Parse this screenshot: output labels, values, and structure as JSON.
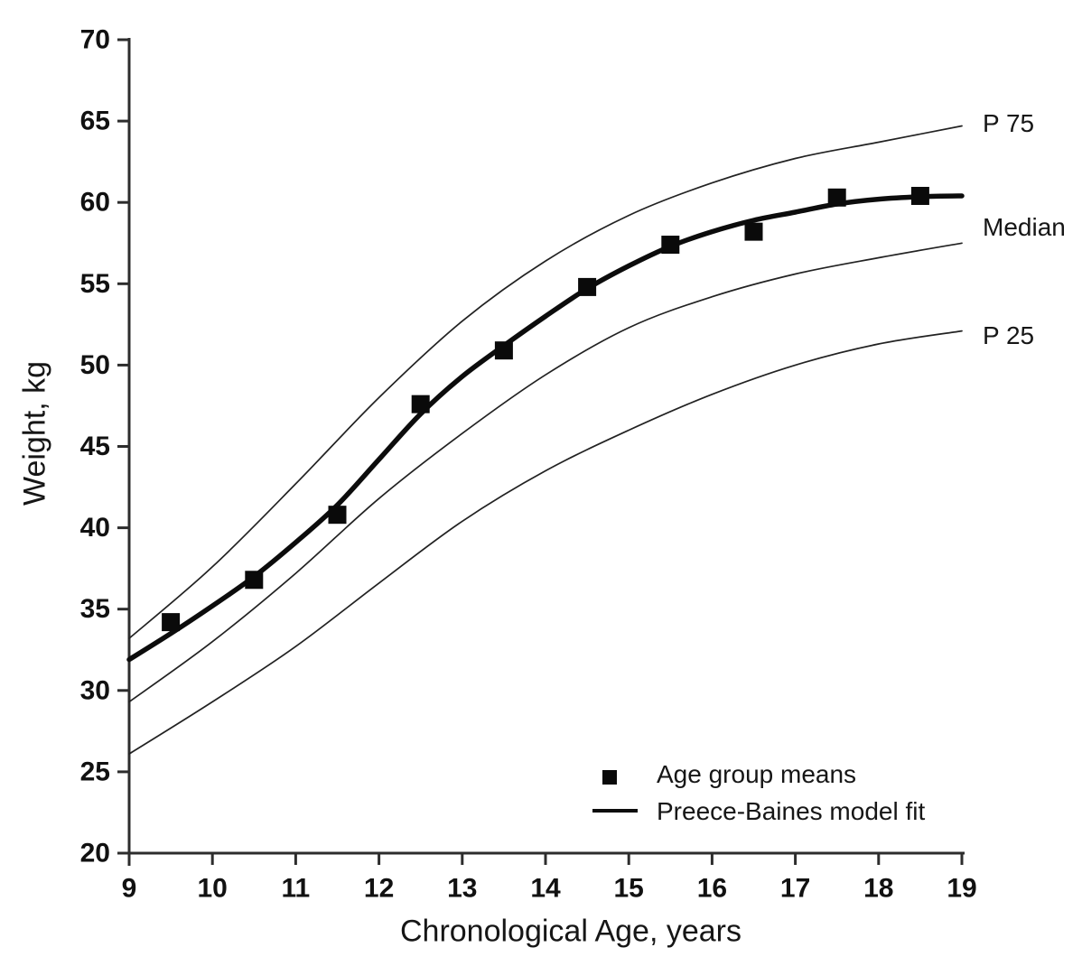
{
  "chart_data": {
    "type": "line",
    "title": "",
    "xlabel": "Chronological Age, years",
    "ylabel": "Weight, kg",
    "xlim": [
      9,
      19
    ],
    "ylim": [
      20,
      70
    ],
    "x_ticks": [
      9,
      10,
      11,
      12,
      13,
      14,
      15,
      16,
      17,
      18,
      19
    ],
    "y_ticks": [
      20,
      25,
      30,
      35,
      40,
      45,
      50,
      55,
      60,
      65,
      70
    ],
    "grid": false,
    "legend_position": "lower right",
    "series": [
      {
        "name": "P 75",
        "kind": "line",
        "style": "thin",
        "x": [
          9,
          10,
          11,
          12,
          13,
          14,
          15,
          16,
          17,
          18,
          19
        ],
        "y": [
          33.2,
          37.6,
          42.7,
          48.0,
          52.7,
          56.4,
          59.2,
          61.2,
          62.7,
          63.7,
          64.7
        ]
      },
      {
        "name": "Median",
        "kind": "line",
        "style": "thin",
        "x": [
          9,
          10,
          11,
          12,
          13,
          14,
          15,
          16,
          17,
          18,
          19
        ],
        "y": [
          29.3,
          33.0,
          37.2,
          41.8,
          45.8,
          49.4,
          52.3,
          54.2,
          55.6,
          56.6,
          57.5
        ]
      },
      {
        "name": "P 25",
        "kind": "line",
        "style": "thin",
        "x": [
          9,
          10,
          11,
          12,
          13,
          14,
          15,
          16,
          17,
          18,
          19
        ],
        "y": [
          26.1,
          29.3,
          32.7,
          36.6,
          40.4,
          43.5,
          46.0,
          48.2,
          50.0,
          51.3,
          52.1
        ]
      },
      {
        "name": "Preece-Baines model fit",
        "kind": "line",
        "style": "thick",
        "x": [
          9,
          9.5,
          10,
          10.5,
          11,
          11.5,
          12,
          12.5,
          13,
          13.5,
          14,
          14.5,
          15,
          15.5,
          16,
          16.5,
          17,
          17.5,
          18,
          18.5,
          19
        ],
        "y": [
          31.9,
          33.5,
          35.2,
          37.0,
          39.1,
          41.4,
          44.2,
          47.0,
          49.3,
          51.2,
          53.0,
          54.7,
          56.1,
          57.3,
          58.2,
          58.9,
          59.4,
          59.9,
          60.2,
          60.35,
          60.4
        ]
      },
      {
        "name": "Age group means",
        "kind": "scatter",
        "marker": "square",
        "x": [
          9.5,
          10.5,
          11.5,
          12.5,
          13.5,
          14.5,
          15.5,
          16.5,
          17.5,
          18.5
        ],
        "y": [
          34.2,
          36.8,
          40.8,
          47.6,
          50.9,
          54.8,
          57.4,
          58.2,
          60.3,
          60.4
        ]
      }
    ],
    "colors": {
      "axis": "#2d2d2d",
      "thin_line": "#222222",
      "thick_line": "#0c0c0c",
      "marker": "#0a0a0a",
      "text": "#111111"
    }
  },
  "axes": {
    "x_title": "Chronological Age, years",
    "y_title": "Weight, kg"
  },
  "curve_labels": {
    "p75": "P 75",
    "median": "Median",
    "p25": "P 25"
  },
  "legend": {
    "means_label": "Age group means",
    "fit_label": "Preece-Baines model fit"
  }
}
